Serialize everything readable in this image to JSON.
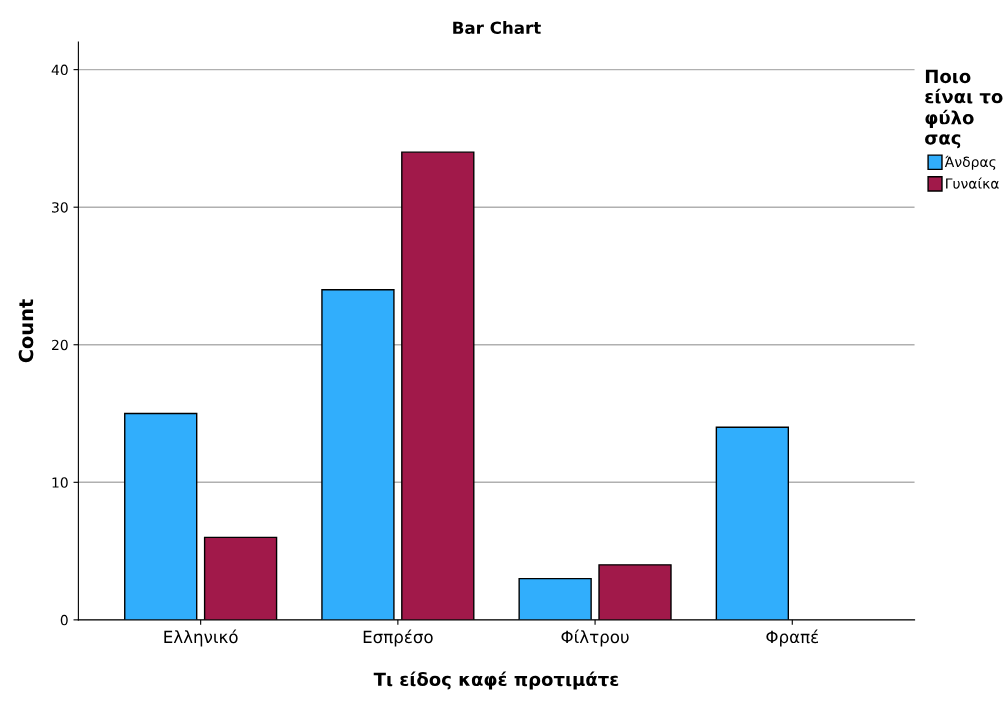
{
  "chart_data": {
    "type": "bar",
    "title": "Bar Chart",
    "xlabel": "Τι είδος καφέ προτιμάτε",
    "ylabel": "Count",
    "categories": [
      "Ελληνικό",
      "Εσπρέσο",
      "Φίλτρου",
      "Φραπέ"
    ],
    "series": [
      {
        "name": "Άνδρας",
        "color": "#31aefc",
        "values": [
          15,
          24,
          3,
          14
        ]
      },
      {
        "name": "Γυναίκα",
        "color": "#a1194a",
        "values": [
          6,
          34,
          4,
          null
        ]
      }
    ],
    "legend_title": "Ποιο\nείναι το\nφύλο\nσας",
    "ylim": [
      0,
      42
    ],
    "yticks": [
      0,
      10,
      20,
      30,
      40
    ],
    "grid": "y",
    "legend": "top right"
  }
}
